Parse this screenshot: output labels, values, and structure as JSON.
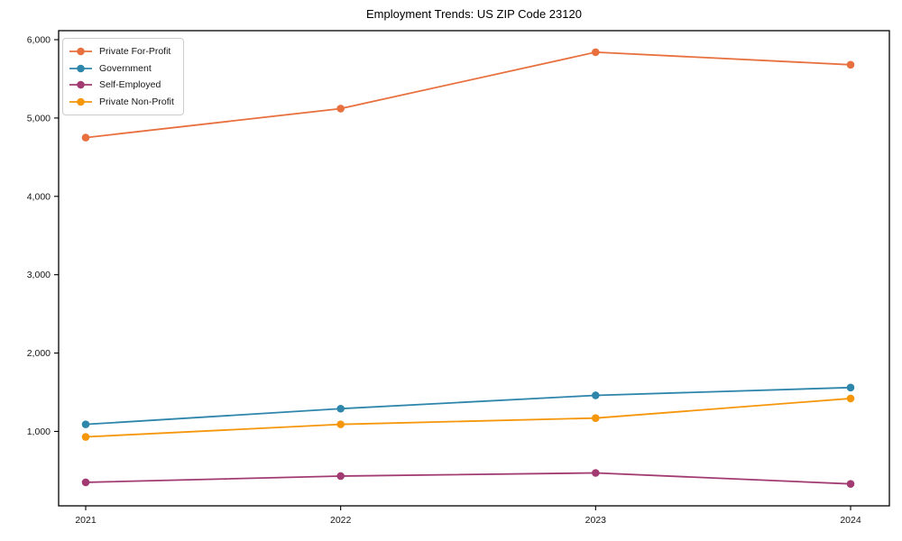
{
  "chart_data": {
    "type": "line",
    "title": "Employment Trends: US ZIP Code 23120",
    "xlabel": "",
    "ylabel": "",
    "grid": false,
    "legend_position": "upper-left",
    "x_categories": [
      "2021",
      "2022",
      "2023",
      "2024"
    ],
    "ylim": [
      50,
      6115
    ],
    "yticks": [
      {
        "value": 1000,
        "label": "1,000"
      },
      {
        "value": 2000,
        "label": "2,000"
      },
      {
        "value": 3000,
        "label": "3,000"
      },
      {
        "value": 4000,
        "label": "4,000"
      },
      {
        "value": 5000,
        "label": "5,000"
      },
      {
        "value": 6000,
        "label": "6,000"
      }
    ],
    "series": [
      {
        "name": "Private For-Profit",
        "color": "#E8703E",
        "values": [
          4750,
          5120,
          5840,
          5680
        ]
      },
      {
        "name": "Government",
        "color": "#2E86AB",
        "values": [
          1090,
          1290,
          1460,
          1560
        ]
      },
      {
        "name": "Self-Employed",
        "color": "#A23B72",
        "values": [
          350,
          430,
          470,
          330
        ]
      },
      {
        "name": "Private Non-Profit",
        "color": "#F5960B",
        "values": [
          930,
          1090,
          1170,
          1420
        ]
      }
    ]
  }
}
